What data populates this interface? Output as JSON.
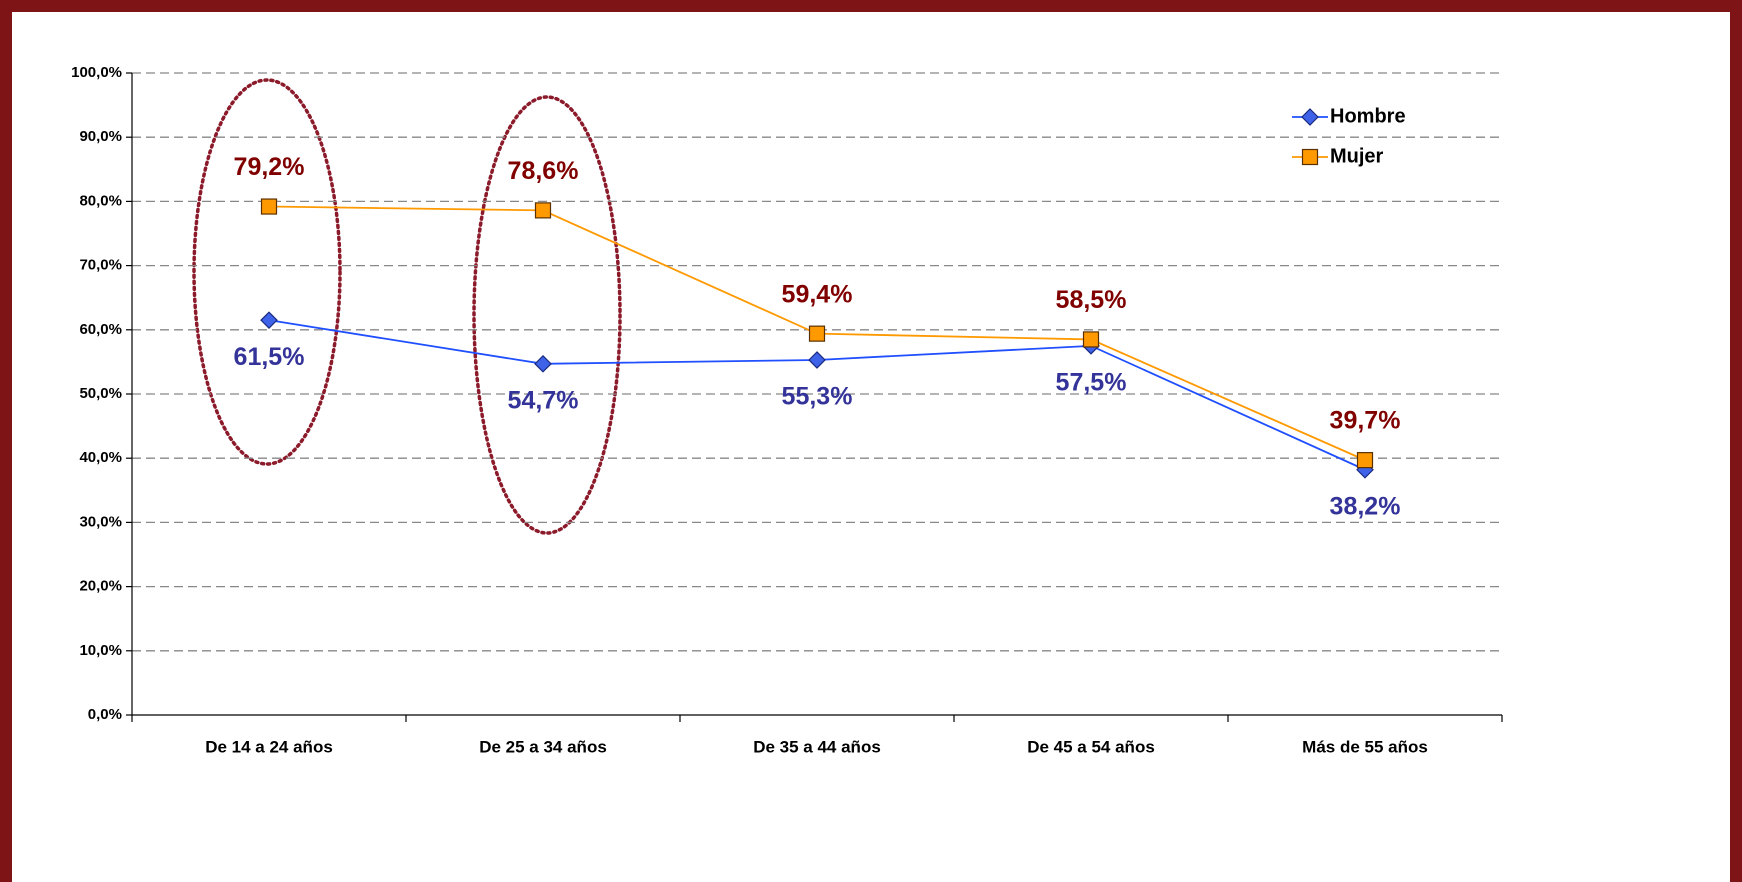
{
  "chart_data": {
    "type": "line",
    "categories": [
      "De 14 a 24 años",
      "De 25 a 34 años",
      "De 35 a 44 años",
      "De 45 a 54 años",
      "Más de 55 años"
    ],
    "series": [
      {
        "name": "Hombre",
        "color": "#1f4fff",
        "marker": "diamond",
        "values": [
          61.5,
          54.7,
          55.3,
          57.5,
          38.2
        ],
        "value_labels": [
          "61,5%",
          "54,7%",
          "55,3%",
          "57,5%",
          "38,2%"
        ]
      },
      {
        "name": "Mujer",
        "color": "#ff9900",
        "marker": "square",
        "values": [
          79.2,
          78.6,
          59.4,
          58.5,
          39.7
        ],
        "value_labels": [
          "79,2%",
          "78,6%",
          "59,4%",
          "58,5%",
          "39,7%"
        ]
      }
    ],
    "ylim": [
      0,
      100
    ],
    "yticks": [
      {
        "value": 0,
        "label": "0,0%"
      },
      {
        "value": 10,
        "label": "10,0%"
      },
      {
        "value": 20,
        "label": "20,0%"
      },
      {
        "value": 30,
        "label": "30,0%"
      },
      {
        "value": 40,
        "label": "40,0%"
      },
      {
        "value": 50,
        "label": "50,0%"
      },
      {
        "value": 60,
        "label": "60,0%"
      },
      {
        "value": 70,
        "label": "70,0%"
      },
      {
        "value": 80,
        "label": "80,0%"
      },
      {
        "value": 90,
        "label": "90,0%"
      },
      {
        "value": 100,
        "label": "100,0%"
      }
    ],
    "grid": true,
    "legend": "upper right"
  }
}
